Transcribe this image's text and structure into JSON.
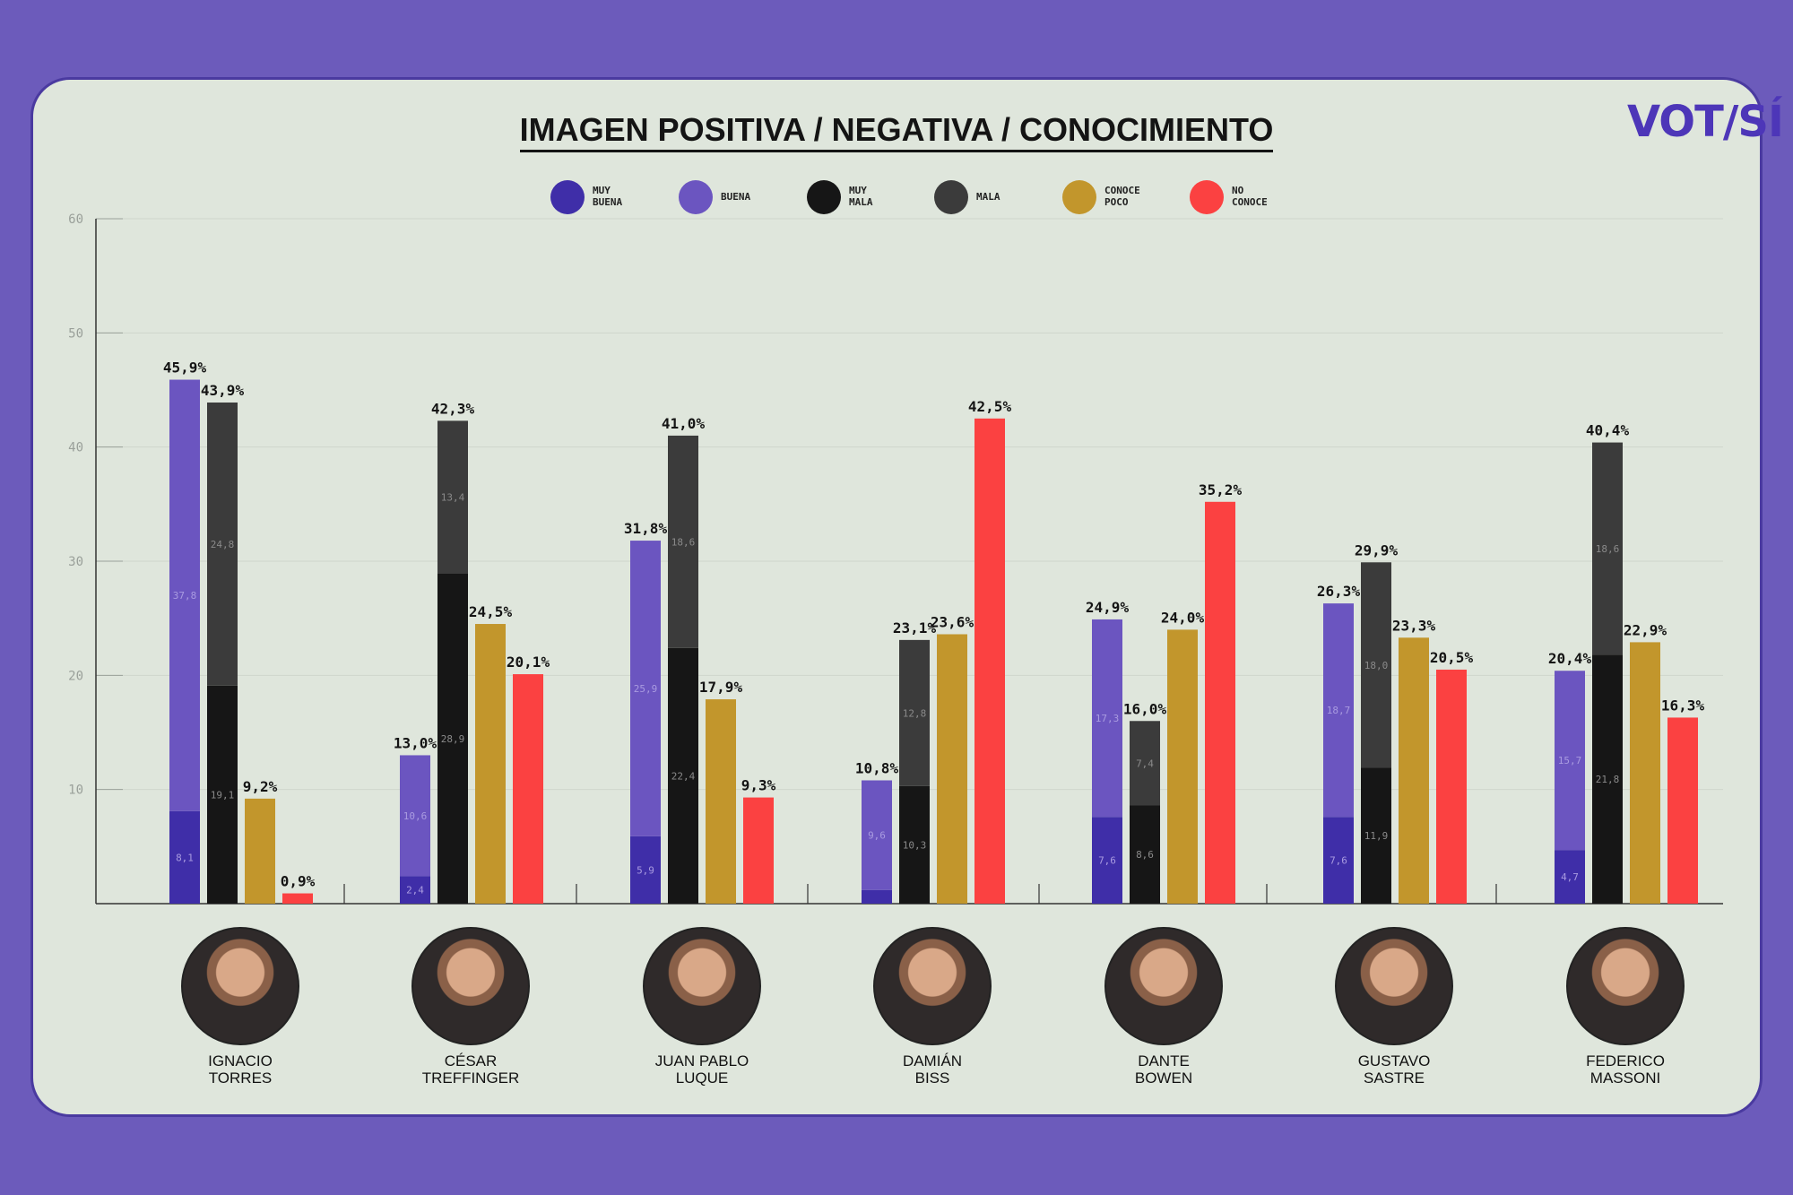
{
  "title": "IMAGEN POSITIVA / NEGATIVA / CONOCIMIENTO",
  "logo": "VOT/SÍ",
  "colors": {
    "muy_buena": "#3f2ea8",
    "buena": "#6b55c0",
    "muy_mala": "#161616",
    "mala": "#3b3b3b",
    "conoce_poco": "#c2962c",
    "no_conoce": "#fb4141",
    "background": "#6c5bbb",
    "card": "#dfe6dc"
  },
  "legend": [
    {
      "label": "MUY\nBUENA",
      "color_key": "muy_buena"
    },
    {
      "label": "BUENA",
      "color_key": "buena"
    },
    {
      "label": "MUY\nMALA",
      "color_key": "muy_mala"
    },
    {
      "label": "MALA",
      "color_key": "mala"
    },
    {
      "label": "CONOCE\nPOCO",
      "color_key": "conoce_poco"
    },
    {
      "label": "NO\nCONOCE",
      "color_key": "no_conoce"
    }
  ],
  "chart_data": {
    "type": "bar",
    "stacked_groups": true,
    "ylim": [
      0,
      60
    ],
    "yticks": [
      "10",
      "20",
      "30",
      "40",
      "50",
      "60"
    ],
    "grid": true,
    "legend_position": "top",
    "categories": [
      "IGNACIO\nTORRES",
      "CÉSAR\nTREFFINGER",
      "JUAN PABLO\nLUQUE",
      "DAMIÁN\nBISS",
      "DANTE\nBOWEN",
      "GUSTAVO\nSASTRE",
      "FEDERICO\nMASSONI"
    ],
    "series": [
      {
        "name": "MUY BUENA",
        "values": [
          8.1,
          2.4,
          5.9,
          1.2,
          7.6,
          7.6,
          4.7
        ],
        "labels": [
          "8,1",
          "2,4",
          "5,9",
          "",
          "7,6",
          "7,6",
          "4,7"
        ]
      },
      {
        "name": "BUENA",
        "values": [
          37.8,
          10.6,
          25.9,
          9.6,
          17.3,
          18.7,
          15.7
        ],
        "labels": [
          "37,8",
          "10,6",
          "25,9",
          "9,6",
          "17,3",
          "18,7",
          "15,7"
        ]
      },
      {
        "name": "MUY MALA",
        "values": [
          19.1,
          28.9,
          22.4,
          10.3,
          8.6,
          11.9,
          21.8
        ],
        "labels": [
          "19,1",
          "28,9",
          "22,4",
          "10,3",
          "8,6",
          "11,9",
          "21,8"
        ]
      },
      {
        "name": "MALA",
        "values": [
          24.8,
          13.4,
          18.6,
          12.8,
          7.4,
          18.0,
          18.6
        ],
        "labels": [
          "24,8",
          "13,4",
          "18,6",
          "12,8",
          "7,4",
          "18,0",
          "18,6"
        ]
      },
      {
        "name": "CONOCE POCO",
        "values": [
          9.2,
          24.5,
          17.9,
          23.6,
          24.0,
          23.3,
          22.9
        ]
      },
      {
        "name": "NO CONOCE",
        "values": [
          0.9,
          20.1,
          9.3,
          42.5,
          35.2,
          20.5,
          16.3
        ]
      }
    ],
    "totals": {
      "positiva": [
        "45,9%",
        "13,0%",
        "31,8%",
        "10,8%",
        "24,9%",
        "26,3%",
        "20,4%"
      ],
      "negativa": [
        "43,9%",
        "42,3%",
        "41,0%",
        "23,1%",
        "16,0%",
        "29,9%",
        "40,4%"
      ],
      "conoce_poco": [
        "9,2%",
        "24,5%",
        "17,9%",
        "23,6%",
        "24,0%",
        "23,3%",
        "22,9%"
      ],
      "no_conoce": [
        "0,9%",
        "20,1%",
        "9,3%",
        "42,5%",
        "35,2%",
        "20,5%",
        "16,3%"
      ]
    }
  }
}
